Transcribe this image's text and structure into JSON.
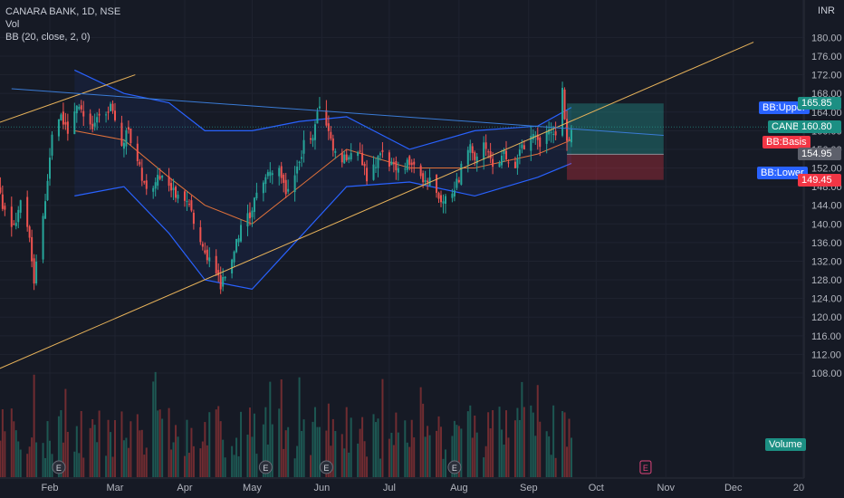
{
  "legend": {
    "symbol_line": "CANARA BANK, 1D, NSE",
    "vol": "Vol",
    "bb": "BB (20, close, 2, 0)"
  },
  "price_unit": "INR",
  "labels": {
    "bb_upper": "BB:Upper",
    "bb_basis": "BB:Basis",
    "bb_lower": "BB:Lower",
    "symbol": "CANBK",
    "volume": "Volume"
  },
  "price_tags": [
    {
      "value": "165.85",
      "color": "#1c8f83"
    },
    {
      "value": "160.80",
      "color": "#1c8f83"
    },
    {
      "value": "154.95",
      "color": "#5d606b"
    },
    {
      "value": "149.45",
      "color": "#f23645"
    }
  ],
  "colors": {
    "up": "#26a69a",
    "down": "#ef5350",
    "basis": "#e0713a",
    "bands": "#2962ff",
    "trend_orange": "#e8b35a",
    "trend_blue": "#3a7bd5",
    "background": "#161a25",
    "axis_text": "#b2b5be"
  },
  "chart_data": {
    "type": "candlestick",
    "y_axis": {
      "ticks": [
        108,
        112,
        116,
        120,
        124,
        128,
        132,
        136,
        140,
        144,
        148,
        152,
        156,
        160,
        164,
        168,
        172,
        176,
        180
      ],
      "tick_labels": [
        "108.00",
        "112.00",
        "116.00",
        "120.00",
        "124.00",
        "128.00",
        "132.00",
        "136.00",
        "140.00",
        "144.00",
        "148.00",
        "152.00",
        "156.00",
        "160.00",
        "164.00",
        "168.00",
        "172.00",
        "176.00",
        "180.00"
      ],
      "range": [
        106,
        184
      ]
    },
    "x_axis": {
      "tick_labels": [
        "Feb",
        "Mar",
        "Apr",
        "May",
        "Jun",
        "Jul",
        "Aug",
        "Sep",
        "Oct",
        "Nov",
        "Dec",
        "20"
      ]
    },
    "price_path": [
      [
        "2024-01-08",
        150
      ],
      [
        "2024-01-12",
        142
      ],
      [
        "2024-01-16",
        139
      ],
      [
        "2024-01-19",
        145
      ],
      [
        "2024-01-23",
        138
      ],
      [
        "2024-01-25",
        128
      ],
      [
        "2024-01-30",
        145
      ],
      [
        "2024-02-02",
        158
      ],
      [
        "2024-02-06",
        163
      ],
      [
        "2024-02-09",
        160
      ],
      [
        "2024-02-14",
        166
      ],
      [
        "2024-02-20",
        160
      ],
      [
        "2024-02-23",
        163
      ],
      [
        "2024-02-28",
        165
      ],
      [
        "2024-03-04",
        157
      ],
      [
        "2024-03-07",
        160
      ],
      [
        "2024-03-12",
        152
      ],
      [
        "2024-03-15",
        147
      ],
      [
        "2024-03-20",
        150
      ],
      [
        "2024-03-26",
        148
      ],
      [
        "2024-03-29",
        146
      ],
      [
        "2024-04-03",
        144
      ],
      [
        "2024-04-05",
        140
      ],
      [
        "2024-04-09",
        134
      ],
      [
        "2024-04-12",
        133
      ],
      [
        "2024-04-17",
        127
      ],
      [
        "2024-04-22",
        132
      ],
      [
        "2024-04-25",
        138
      ],
      [
        "2024-04-30",
        142
      ],
      [
        "2024-05-03",
        147
      ],
      [
        "2024-05-07",
        150
      ],
      [
        "2024-05-13",
        152
      ],
      [
        "2024-05-16",
        147
      ],
      [
        "2024-05-21",
        152
      ],
      [
        "2024-05-24",
        157
      ],
      [
        "2024-05-28",
        159
      ],
      [
        "2024-05-31",
        165
      ],
      [
        "2024-06-04",
        160
      ],
      [
        "2024-06-07",
        155
      ],
      [
        "2024-06-12",
        154
      ],
      [
        "2024-06-18",
        155
      ],
      [
        "2024-06-21",
        150
      ],
      [
        "2024-06-25",
        153
      ],
      [
        "2024-06-28",
        155
      ],
      [
        "2024-07-03",
        152
      ],
      [
        "2024-07-08",
        153
      ],
      [
        "2024-07-12",
        152
      ],
      [
        "2024-07-16",
        150
      ],
      [
        "2024-07-19",
        150
      ],
      [
        "2024-07-24",
        145
      ],
      [
        "2024-07-29",
        147
      ],
      [
        "2024-08-01",
        150
      ],
      [
        "2024-08-05",
        157
      ],
      [
        "2024-08-08",
        154
      ],
      [
        "2024-08-13",
        157
      ],
      [
        "2024-08-16",
        153
      ],
      [
        "2024-08-21",
        155
      ],
      [
        "2024-08-26",
        153
      ],
      [
        "2024-08-29",
        156
      ],
      [
        "2024-09-03",
        160
      ],
      [
        "2024-09-06",
        157
      ],
      [
        "2024-09-11",
        160
      ],
      [
        "2024-09-13",
        158
      ],
      [
        "2024-09-16",
        170
      ],
      [
        "2024-09-18",
        157
      ],
      [
        "2024-09-20",
        161
      ]
    ],
    "bb_upper": [
      [
        "2024-02-12",
        173
      ],
      [
        "2024-03-05",
        168
      ],
      [
        "2024-03-25",
        166
      ],
      [
        "2024-04-10",
        160
      ],
      [
        "2024-05-01",
        160
      ],
      [
        "2024-05-22",
        162
      ],
      [
        "2024-06-12",
        163
      ],
      [
        "2024-07-10",
        156
      ],
      [
        "2024-08-08",
        160
      ],
      [
        "2024-09-05",
        161
      ],
      [
        "2024-09-20",
        165
      ]
    ],
    "bb_basis": [
      [
        "2024-02-12",
        160
      ],
      [
        "2024-03-05",
        158
      ],
      [
        "2024-03-25",
        150
      ],
      [
        "2024-04-10",
        144
      ],
      [
        "2024-05-01",
        140
      ],
      [
        "2024-05-22",
        148
      ],
      [
        "2024-06-12",
        156
      ],
      [
        "2024-07-10",
        152
      ],
      [
        "2024-08-08",
        152
      ],
      [
        "2024-09-05",
        155
      ],
      [
        "2024-09-20",
        158
      ]
    ],
    "bb_lower": [
      [
        "2024-02-12",
        146
      ],
      [
        "2024-03-05",
        148
      ],
      [
        "2024-03-25",
        138
      ],
      [
        "2024-04-10",
        128
      ],
      [
        "2024-05-01",
        126
      ],
      [
        "2024-05-22",
        137
      ],
      [
        "2024-06-12",
        148
      ],
      [
        "2024-07-10",
        149
      ],
      [
        "2024-08-08",
        146
      ],
      [
        "2024-09-05",
        150
      ],
      [
        "2024-09-20",
        153
      ]
    ],
    "trend_lines": [
      {
        "color": "orange",
        "points": [
          [
            "2024-01-05",
            161
          ],
          [
            "2024-03-10",
            172
          ]
        ]
      },
      {
        "color": "orange",
        "points": [
          [
            "2024-01-05",
            108
          ],
          [
            "2024-12-10",
            179
          ]
        ]
      },
      {
        "color": "blue",
        "points": [
          [
            "2024-01-15",
            169
          ],
          [
            "2024-10-31",
            159
          ]
        ]
      }
    ],
    "position_box": {
      "start": "2024-09-18",
      "end": "2024-10-31",
      "target": 165.85,
      "entry": 154.95,
      "stop": 149.45
    },
    "volume_label": "Volume",
    "earnings_markers": [
      "2024-02-05",
      "2024-05-07",
      "2024-06-03",
      "2024-07-30"
    ],
    "future_earnings_marker": "2024-10-23"
  }
}
